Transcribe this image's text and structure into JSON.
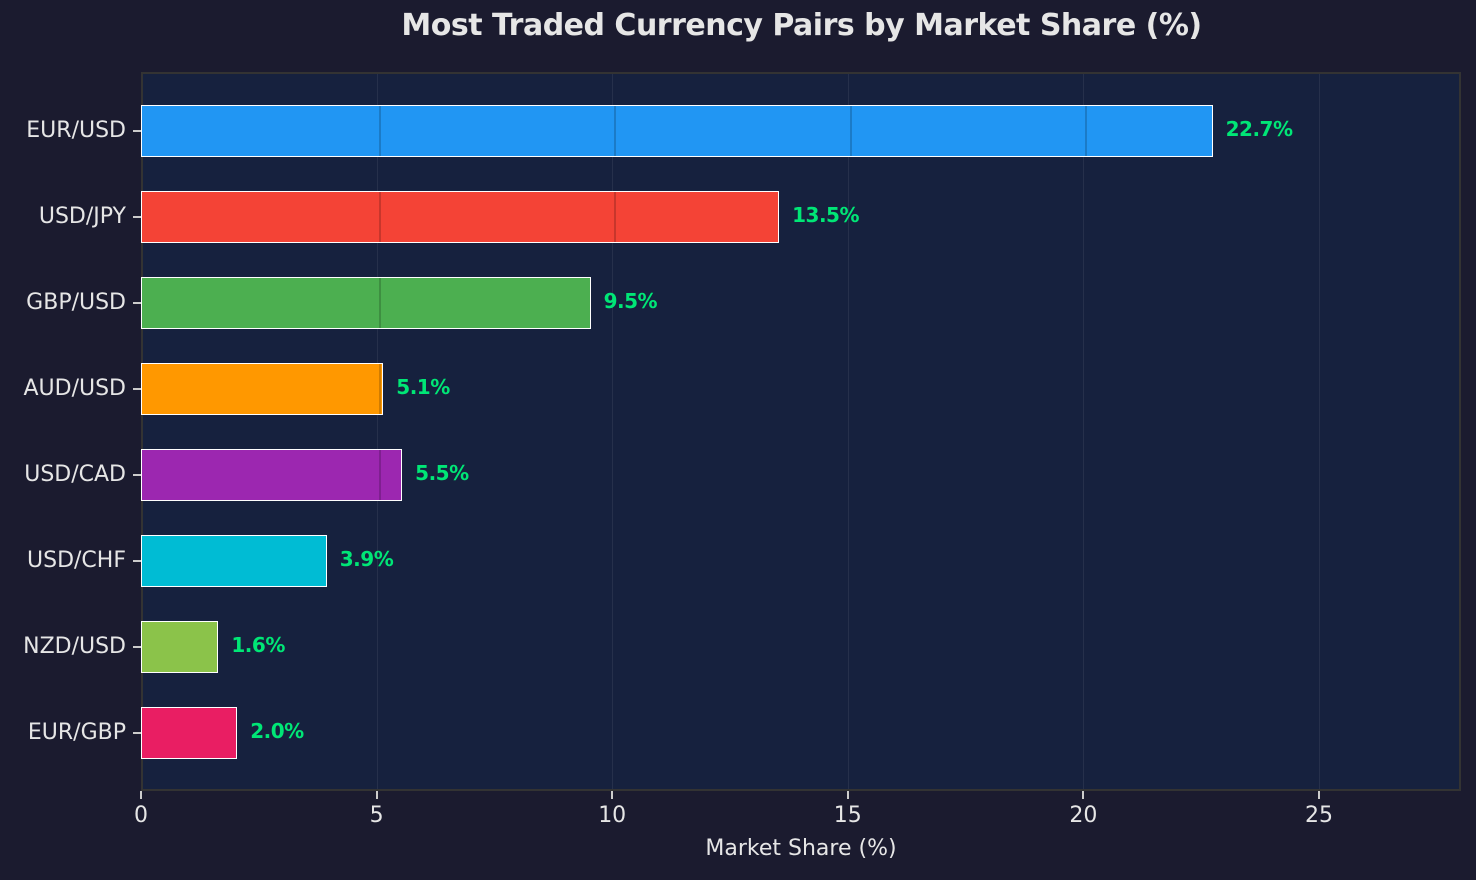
{
  "chart_data": {
    "type": "bar",
    "orientation": "horizontal",
    "title": "Most Traded Currency Pairs by Market Share (%)",
    "xlabel": "Market Share (%)",
    "ylabel": "",
    "xlim": [
      0,
      28
    ],
    "xticks": [
      0,
      5,
      10,
      15,
      20,
      25
    ],
    "xtick_labels": [
      "0",
      "5",
      "10",
      "15",
      "20",
      "25"
    ],
    "grid": true,
    "legend": null,
    "categories": [
      "EUR/USD",
      "USD/JPY",
      "GBP/USD",
      "AUD/USD",
      "USD/CAD",
      "USD/CHF",
      "NZD/USD",
      "EUR/GBP"
    ],
    "values": [
      22.7,
      13.5,
      9.5,
      5.1,
      5.5,
      3.9,
      1.6,
      2.0
    ],
    "value_labels": [
      "22.7%",
      "13.5%",
      "9.5%",
      "5.1%",
      "5.5%",
      "3.9%",
      "1.6%",
      "2.0%"
    ],
    "colors": [
      "#2196f3",
      "#f44336",
      "#4caf50",
      "#ff9800",
      "#9c27b0",
      "#00bcd4",
      "#8bc34a",
      "#e91e63"
    ],
    "value_label_color": "#00e676",
    "background_color": "#1b1b2f",
    "plot_background_color": "#16213e"
  }
}
